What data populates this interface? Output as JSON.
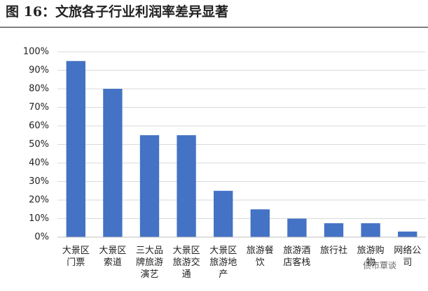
{
  "chart_data": {
    "type": "bar",
    "title": "图 16：文旅各子行业利润率差异显著",
    "categories": [
      "大景区门票",
      "大景区索道",
      "三大品牌旅游演艺",
      "大景区旅游交通",
      "大景区旅游地产",
      "旅游餐饮",
      "旅游酒店客栈",
      "旅行社",
      "旅游购物",
      "网络公司"
    ],
    "values": [
      95,
      80,
      55,
      55,
      25,
      15,
      10,
      7.5,
      7.5,
      3
    ],
    "color": "#4472c4",
    "ylim": [
      0,
      100
    ],
    "yticks": [
      {
        "value": 0,
        "label": "0%"
      },
      {
        "value": 10,
        "label": "10%"
      },
      {
        "value": 20,
        "label": "20%"
      },
      {
        "value": 30,
        "label": "30%"
      },
      {
        "value": 40,
        "label": "40%"
      },
      {
        "value": 50,
        "label": "50%"
      },
      {
        "value": 60,
        "label": "60%"
      },
      {
        "value": 70,
        "label": "70%"
      },
      {
        "value": 80,
        "label": "80%"
      },
      {
        "value": 90,
        "label": "90%"
      },
      {
        "value": 100,
        "label": "100%"
      }
    ],
    "grid": true,
    "watermark": "债市覃谈"
  }
}
